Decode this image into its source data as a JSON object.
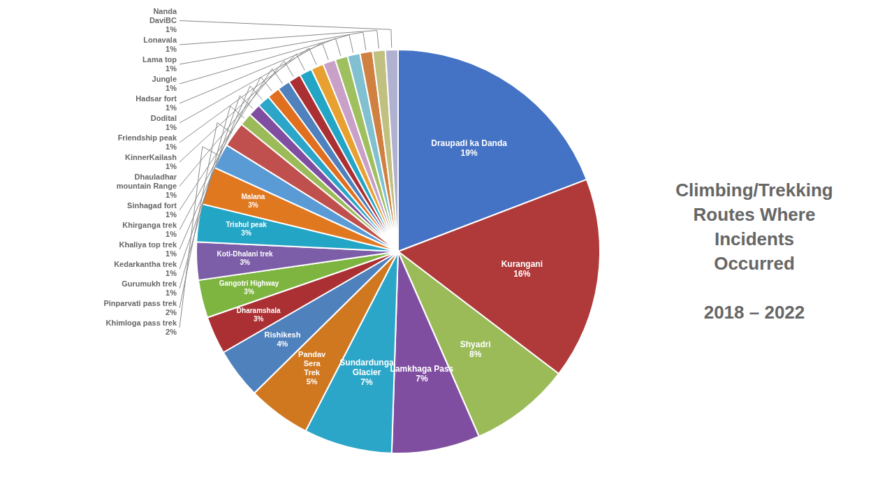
{
  "chart_data": {
    "type": "pie",
    "title": "Climbing/Trekking\nRoutes Where\nIncidents\nOccurred\n\n2018 – 2022",
    "categories": [
      "Draupadi ka Danda",
      "Kurangani",
      "Shyadri",
      "Lamkhaga Pass",
      "Sundardunga\nGlacier",
      "Pandav\nSera\nTrek",
      "Rishikesh",
      "Dharamshala",
      "Gangotri Highway",
      "Koti-Dhalani trek",
      "Trishul peak",
      "Malana",
      "Khimloga pass trek",
      "Pinparvati pass trek",
      "Gurumukh trek",
      "Kedarkantha trek",
      "Khaliya top trek",
      "Khirganga trek",
      "Sinhagad fort",
      "Dhauladhar\nmountain Range",
      "KinnerKailash",
      "Friendship peak",
      "Dodital",
      "Hadsar fort",
      "Jungle",
      "Lama top",
      "Lonavala",
      "Nanda\nDaviBC"
    ],
    "values": [
      19,
      16,
      8,
      7,
      7,
      5,
      4,
      3,
      3,
      3,
      3,
      3,
      2,
      2,
      1,
      1,
      1,
      1,
      1,
      1,
      1,
      1,
      1,
      1,
      1,
      1,
      1,
      1
    ],
    "value_labels": [
      "19%",
      "16%",
      "8%",
      "7%",
      "7%",
      "5%",
      "4%",
      "3%",
      "3%",
      "3%",
      "3%",
      "3%",
      "2%",
      "2%",
      "1%",
      "1%",
      "1%",
      "1%",
      "1%",
      "1%",
      "1%",
      "1%",
      "1%",
      "1%",
      "1%",
      "1%",
      "1%",
      "1%"
    ],
    "colors": [
      "#4472C4",
      "#B03A3A",
      "#9BBB59",
      "#7F4EA0",
      "#2CA6C8",
      "#D07820",
      "#4F81BD",
      "#AA3033",
      "#7DB540",
      "#7B5EA7",
      "#23A5C5",
      "#E07820",
      "#5A9BD5",
      "#C0504D",
      "#9BBB59",
      "#7F4EA0",
      "#2CA6C8",
      "#E07020",
      "#4F81BD",
      "#AA3033",
      "#23A5C5",
      "#E8A030",
      "#C8A0C8",
      "#A0C060",
      "#80C0D0",
      "#D08040",
      "#C0C080",
      "#B0B0D0"
    ],
    "data_labels": true
  }
}
